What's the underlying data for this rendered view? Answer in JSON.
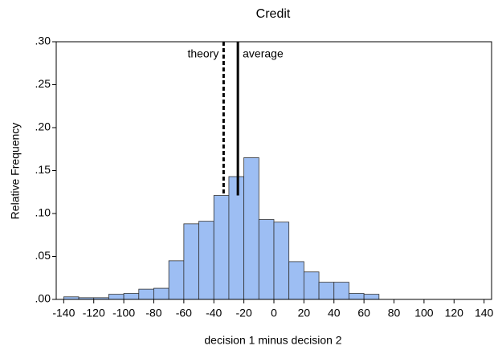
{
  "chart_data": {
    "type": "histogram",
    "title": "Credit",
    "x_label": "decision 1 minus decision 2",
    "y_label": "Relative Frequency",
    "bins": [
      -140,
      -130,
      -120,
      -110,
      -100,
      -90,
      -80,
      -70,
      -60,
      -50,
      -40,
      -30,
      -20,
      -10,
      0,
      10,
      20,
      30,
      40,
      50,
      60,
      70
    ],
    "values": [
      0.003,
      0.002,
      0.002,
      0.006,
      0.007,
      0.012,
      0.013,
      0.045,
      0.088,
      0.091,
      0.121,
      0.143,
      0.165,
      0.093,
      0.09,
      0.044,
      0.032,
      0.02,
      0.02,
      0.007,
      0.006
    ],
    "color": "#9dbef3",
    "xlim": [
      -145,
      145
    ],
    "xticks": [
      -140,
      -120,
      -100,
      -80,
      -60,
      -40,
      -20,
      0,
      20,
      40,
      60,
      80,
      100,
      120,
      140
    ],
    "ylim": [
      0,
      0.3
    ],
    "yticks": [
      {
        "value": 0,
        "label": ".00"
      },
      {
        "value": 0.05,
        "label": ".05"
      },
      {
        "value": 0.1,
        "label": ".10"
      },
      {
        "value": 0.15,
        "label": ".15"
      },
      {
        "value": 0.2,
        "label": ".20"
      },
      {
        "value": 0.25,
        "label": ".25"
      },
      {
        "value": 0.3,
        "label": ".30"
      }
    ],
    "annotations": [
      {
        "label": "theory",
        "x": -33.5,
        "style": "dashed"
      },
      {
        "label": "average",
        "x": -24,
        "style": "solid"
      }
    ]
  }
}
